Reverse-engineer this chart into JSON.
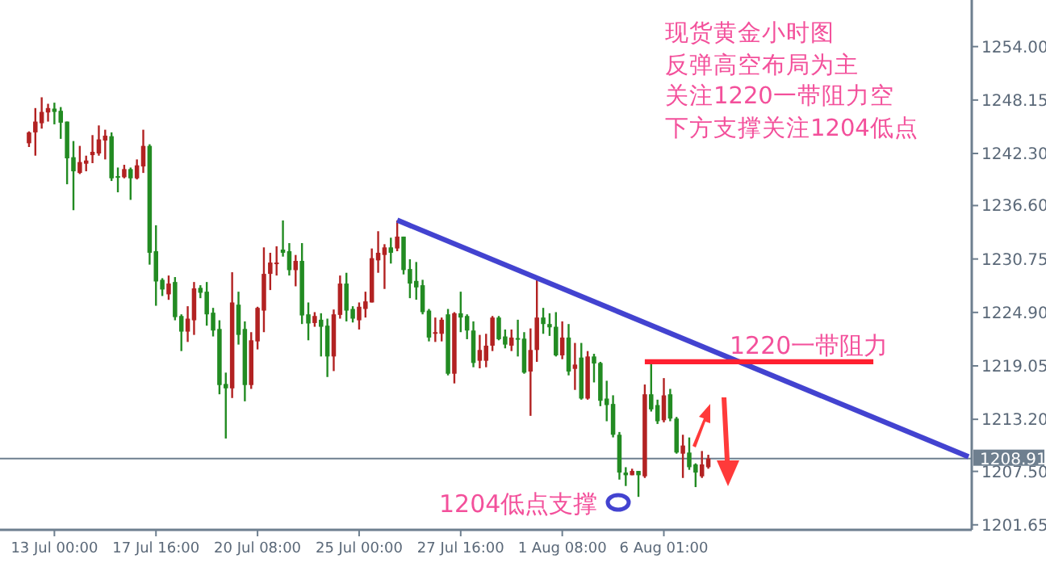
{
  "chart_data": {
    "type": "candlestick",
    "title": "现货黄金小时图",
    "subtitle": "反弹高空布局为主",
    "annotations": [
      "关注1220一带阻力空",
      "下方支撑关注1204低点",
      "1220一带阻力",
      "1204低点支撑"
    ],
    "ylim": [
      1201.1,
      1259.1
    ],
    "yticks": [
      {
        "value": 1254,
        "label": "1254.00"
      },
      {
        "value": 1248.15,
        "label": "1248.15"
      },
      {
        "value": 1242.3,
        "label": "1242.30"
      },
      {
        "value": 1236.6,
        "label": "1236.60"
      },
      {
        "value": 1230.75,
        "label": "1230.75"
      },
      {
        "value": 1224.9,
        "label": "1224.90"
      },
      {
        "value": 1219.05,
        "label": "1219.05"
      },
      {
        "value": 1213.2,
        "label": "1213.20"
      },
      {
        "value": 1207.5,
        "label": "1207.50"
      },
      {
        "value": 1201.65,
        "label": "1201.65"
      }
    ],
    "categories": [
      null,
      null,
      null,
      null,
      "13 Jul 00:00",
      null,
      null,
      null,
      null,
      null,
      null,
      null,
      null,
      null,
      null,
      null,
      null,
      null,
      null,
      null,
      "17 Jul 16:00",
      null,
      null,
      null,
      null,
      null,
      null,
      null,
      null,
      null,
      null,
      null,
      null,
      null,
      null,
      null,
      "20 Jul 08:00",
      null,
      null,
      null,
      null,
      null,
      null,
      null,
      null,
      null,
      null,
      null,
      null,
      null,
      null,
      null,
      "25 Jul 00:00",
      null,
      null,
      null,
      null,
      null,
      null,
      null,
      null,
      null,
      null,
      null,
      null,
      null,
      null,
      null,
      "27 Jul 16:00",
      null,
      null,
      null,
      null,
      null,
      null,
      null,
      null,
      null,
      null,
      null,
      null,
      null,
      null,
      null,
      "1 Aug 08:00",
      null,
      null,
      null,
      null,
      null,
      null,
      null,
      null,
      null,
      null,
      null,
      null,
      null,
      null,
      null,
      "6 Aug 01:00",
      null,
      null,
      null,
      null,
      null,
      null,
      null,
      null,
      null,
      null,
      null,
      null,
      null,
      null,
      null,
      null,
      null,
      null,
      null,
      null,
      null,
      null,
      null,
      null,
      null,
      null,
      null,
      null,
      null,
      null,
      null,
      null,
      null,
      null,
      null,
      null,
      null,
      null,
      null,
      null,
      null,
      null,
      null,
      null,
      null,
      null,
      null,
      null
    ],
    "ohlc": [
      [
        1243.42,
        1244.72,
        1243.01,
        1244.61
      ],
      [
        1244.61,
        1247.27,
        1242.06,
        1245.79
      ],
      [
        1245.61,
        1248.45,
        1245.02,
        1246.85
      ],
      [
        1246.79,
        1247.74,
        1245.79,
        1247.27
      ],
      [
        1247.21,
        1247.86,
        1245.49,
        1246.85
      ],
      [
        1246.97,
        1247.38,
        1243.9,
        1245.67
      ],
      [
        1245.79,
        1245.79,
        1238.93,
        1241.77
      ],
      [
        1241.89,
        1243.66,
        1236.09,
        1240.35
      ],
      [
        1240.17,
        1243.13,
        1240.05,
        1241.36
      ],
      [
        1241.18,
        1242.06,
        1240.35,
        1241.53
      ],
      [
        1242.12,
        1244.31,
        1241.24,
        1242.48
      ],
      [
        1242.3,
        1245.37,
        1242.06,
        1243.84
      ],
      [
        1243.72,
        1244.9,
        1241.65,
        1244.25
      ],
      [
        1244.19,
        1244.61,
        1239.29,
        1239.58
      ],
      [
        1239.82,
        1240.76,
        1238.05,
        1239.64
      ],
      [
        1239.7,
        1241.06,
        1239.58,
        1240.59
      ],
      [
        1240.59,
        1240.76,
        1237.22,
        1239.58
      ],
      [
        1239.58,
        1241.65,
        1239.46,
        1241.0
      ],
      [
        1240.88,
        1244.9,
        1240.17,
        1243.13
      ],
      [
        1243.13,
        1243.31,
        1230.13,
        1231.43
      ],
      [
        1231.6,
        1234.44,
        1225.63,
        1228.29
      ],
      [
        1228.47,
        1228.65,
        1226.7,
        1227.41
      ],
      [
        1226.88,
        1228.94,
        1226.28,
        1228.06
      ],
      [
        1228.23,
        1228.77,
        1224.04,
        1224.39
      ],
      [
        1224.51,
        1224.69,
        1220.67,
        1222.8
      ],
      [
        1222.8,
        1225.58,
        1221.67,
        1224.22
      ],
      [
        1224.04,
        1228.23,
        1222.44,
        1227.53
      ],
      [
        1227.59,
        1227.88,
        1226.46,
        1227.05
      ],
      [
        1227.17,
        1228.23,
        1223.45,
        1224.69
      ],
      [
        1224.87,
        1225.4,
        1222.27,
        1222.92
      ],
      [
        1223.09,
        1224.04,
        1215.94,
        1216.95
      ],
      [
        1217.07,
        1218.31,
        1211.1,
        1216.59
      ],
      [
        1216.59,
        1229.3,
        1215.53,
        1225.99
      ],
      [
        1225.75,
        1227.17,
        1221.38,
        1222.44
      ],
      [
        1223.09,
        1223.92,
        1215.17,
        1216.95
      ],
      [
        1216.95,
        1222.74,
        1216.53,
        1221.85
      ],
      [
        1221.73,
        1225.52,
        1220.85,
        1225.4
      ],
      [
        1225.1,
        1232.02,
        1222.74,
        1229.12
      ],
      [
        1229.12,
        1231.43,
        1227.35,
        1230.36
      ],
      [
        1230.25,
        1232.14,
        1228.94,
        1230.36
      ],
      [
        1231.78,
        1234.97,
        1231.01,
        1231.43
      ],
      [
        1231.6,
        1232.49,
        1228.94,
        1229.53
      ],
      [
        1229.53,
        1231.19,
        1227.76,
        1230.54
      ],
      [
        1230.54,
        1232.49,
        1223.63,
        1224.57
      ],
      [
        1224.69,
        1225.99,
        1221.85,
        1223.69
      ],
      [
        1223.74,
        1224.93,
        1223.33,
        1224.51
      ],
      [
        1224.1,
        1224.81,
        1220.08,
        1223.33
      ],
      [
        1223.45,
        1224.22,
        1217.83,
        1220.08
      ],
      [
        1220.08,
        1225.22,
        1218.48,
        1224.69
      ],
      [
        1224.63,
        1228.94,
        1224.22,
        1228.06
      ],
      [
        1228.06,
        1229.24,
        1223.92,
        1225.1
      ],
      [
        1225.28,
        1225.58,
        1223.8,
        1224.22
      ],
      [
        1224.04,
        1225.99,
        1223.03,
        1225.52
      ],
      [
        1225.28,
        1227.17,
        1224.34,
        1226.11
      ],
      [
        1225.99,
        1231.9,
        1225.99,
        1230.84
      ],
      [
        1230.6,
        1233.79,
        1229.24,
        1231.43
      ],
      [
        1231.19,
        1232.37,
        1227.47,
        1232.02
      ],
      [
        1232.02,
        1233.08,
        1230.25,
        1231.43
      ],
      [
        1231.9,
        1234.97,
        1231.6,
        1233.2
      ],
      [
        1233.2,
        1233.2,
        1229.06,
        1229.54
      ],
      [
        1229.65,
        1230.72,
        1226.46,
        1228.06
      ],
      [
        1228.35,
        1230.42,
        1226.29,
        1227.64
      ],
      [
        1227.88,
        1228.47,
        1224.69,
        1224.93
      ],
      [
        1225.1,
        1225.28,
        1221.73,
        1222.15
      ],
      [
        1222.56,
        1224.34,
        1221.67,
        1222.74
      ],
      [
        1222.56,
        1224.34,
        1221.73,
        1224.1
      ],
      [
        1224.69,
        1225.28,
        1218.01,
        1218.19
      ],
      [
        1218.19,
        1224.93,
        1217.13,
        1224.81
      ],
      [
        1224.81,
        1227.17,
        1222.74,
        1224.34
      ],
      [
        1224.51,
        1224.69,
        1221.97,
        1222.92
      ],
      [
        1222.92,
        1223.92,
        1218.9,
        1219.37
      ],
      [
        1219.61,
        1222.44,
        1218.78,
        1220.79
      ],
      [
        1219.61,
        1222.56,
        1218.9,
        1221.26
      ],
      [
        1221.26,
        1224.51,
        1220.67,
        1224.34
      ],
      [
        1224.34,
        1224.51,
        1221.85,
        1221.97
      ],
      [
        1222.27,
        1223.03,
        1220.97,
        1221.38
      ],
      [
        1221.26,
        1223.03,
        1220.67,
        1222.15
      ],
      [
        1222.09,
        1224.1,
        1220.08,
        1221.97
      ],
      [
        1222.03,
        1222.74,
        1218.19,
        1218.31
      ],
      [
        1218.43,
        1223.15,
        1213.58,
        1220.79
      ],
      [
        1220.79,
        1228.47,
        1219.49,
        1224.34
      ],
      [
        1224.34,
        1225.4,
        1222.56,
        1223.63
      ],
      [
        1223.63,
        1224.81,
        1222.33,
        1223.27
      ],
      [
        1223.33,
        1224.93,
        1220.08,
        1220.2
      ],
      [
        1220.2,
        1223.92,
        1219.78,
        1222.15
      ],
      [
        1222.15,
        1223.63,
        1218.01,
        1218.43
      ],
      [
        1218.72,
        1221.56,
        1216.42,
        1219.19
      ],
      [
        1219.96,
        1221.56,
        1215.35,
        1215.47
      ],
      [
        1215.47,
        1220.67,
        1215.35,
        1220.08
      ],
      [
        1220.08,
        1220.37,
        1217.24,
        1219.31
      ],
      [
        1219.37,
        1219.49,
        1214.64,
        1215.23
      ],
      [
        1215.47,
        1217.42,
        1212.99,
        1214.76
      ],
      [
        1214.88,
        1215.83,
        1211.22,
        1211.51
      ],
      [
        1211.51,
        1211.81,
        1206.6,
        1207.37
      ],
      [
        1207.37,
        1207.96,
        1205.9,
        1207.08
      ],
      [
        1207.08,
        1207.79,
        1207.08,
        1207.55
      ],
      [
        1207.55,
        1207.55,
        1204.71,
        1207.08
      ],
      [
        1206.96,
        1217.01,
        1206.78,
        1215.94
      ],
      [
        1215.94,
        1219.49,
        1214.05,
        1214.29
      ],
      [
        1214.76,
        1215.35,
        1212.69,
        1212.99
      ],
      [
        1213.1,
        1217.71,
        1212.87,
        1215.82
      ],
      [
        1215.94,
        1216.53,
        1212.99,
        1213.28
      ],
      [
        1213.28,
        1213.46,
        1209.44,
        1209.56
      ],
      [
        1209.44,
        1211.51,
        1206.78,
        1210.33
      ],
      [
        1209.56,
        1211.21,
        1207.67,
        1207.96
      ],
      [
        1208.26,
        1208.38,
        1205.78,
        1207.37
      ],
      [
        1206.96,
        1209.73,
        1206.78,
        1208.26
      ],
      [
        1207.96,
        1209.32,
        1207.79,
        1208.91
      ],
      null,
      null,
      null,
      null,
      null,
      null,
      null,
      null,
      null,
      null,
      null,
      null,
      null,
      null,
      null,
      null,
      null,
      null,
      null,
      null,
      null,
      null,
      null,
      null,
      null,
      null,
      null,
      null,
      null,
      null,
      null,
      null,
      null,
      null,
      null,
      null,
      null,
      null,
      null,
      null,
      null
    ],
    "colors": [
      "#b22222",
      "#b22222",
      "#b22222",
      "#b22222",
      "#228b22",
      "#228b22",
      "#228b22",
      "#228b22",
      "#b22222",
      "#b22222",
      "#b22222",
      "#b22222",
      "#b22222",
      "#228b22",
      "#228b22",
      "#b22222",
      "#228b22",
      "#b22222",
      "#b22222",
      "#228b22",
      "#228b22",
      "#228b22",
      "#b22222",
      "#228b22",
      "#228b22",
      "#b22222",
      "#b22222",
      "#228b22",
      "#228b22",
      "#228b22",
      "#228b22",
      "#228b22",
      "#b22222",
      "#228b22",
      "#228b22",
      "#b22222",
      "#b22222",
      "#b22222",
      "#b22222",
      "#b22222",
      "#228b22",
      "#228b22",
      "#b22222",
      "#228b22",
      "#228b22",
      "#b22222",
      "#228b22",
      "#228b22",
      "#b22222",
      "#b22222",
      "#228b22",
      "#228b22",
      "#b22222",
      "#b22222",
      "#b22222",
      "#b22222",
      "#b22222",
      "#228b22",
      "#b22222",
      "#228b22",
      "#228b22",
      "#228b22",
      "#228b22",
      "#228b22",
      "#b22222",
      "#b22222",
      "#228b22",
      "#b22222",
      "#228b22",
      "#228b22",
      "#228b22",
      "#b22222",
      "#b22222",
      "#b22222",
      "#228b22",
      "#228b22",
      "#b22222",
      "#228b22",
      "#228b22",
      "#b22222",
      "#b22222",
      "#228b22",
      "#228b22",
      "#228b22",
      "#b22222",
      "#228b22",
      "#b22222",
      "#228b22",
      "#b22222",
      "#228b22",
      "#228b22",
      "#228b22",
      "#228b22",
      "#228b22",
      "#228b22",
      "#b22222",
      "#228b22",
      "#b22222",
      "#228b22",
      "#228b22",
      "#b22222",
      "#228b22",
      "#228b22",
      "#b22222",
      "#228b22",
      "#228b22",
      "#b22222",
      "#b22222",
      null,
      null,
      null,
      null,
      null,
      null,
      null,
      null,
      null,
      null,
      null,
      null,
      null,
      null,
      null,
      null,
      null,
      null,
      null,
      null,
      null,
      null,
      null,
      null,
      null,
      null,
      null,
      null,
      null,
      null,
      null,
      null,
      null,
      null,
      null,
      null,
      null,
      null,
      null,
      null,
      null
    ],
    "series": [
      {
        "type": "line",
        "color": "#4343d0",
        "values": [
          null,
          null,
          null,
          null,
          null,
          null,
          null,
          null,
          null,
          null,
          null,
          null,
          null,
          null,
          null,
          null,
          null,
          null,
          null,
          null,
          null,
          null,
          null,
          null,
          null,
          null,
          null,
          null,
          null,
          null,
          null,
          null,
          null,
          null,
          null,
          null,
          null,
          null,
          null,
          null,
          null,
          null,
          null,
          null,
          null,
          null,
          null,
          null,
          null,
          null,
          null,
          null,
          null,
          null,
          null,
          null,
          null,
          null,
          1235.0,
          null,
          null,
          null,
          null,
          null,
          null,
          null,
          null,
          null,
          null,
          null,
          null,
          null,
          null,
          null,
          null,
          null,
          null,
          null,
          null,
          null,
          null,
          null,
          null,
          null,
          null,
          null,
          null,
          null,
          null,
          null,
          null,
          null,
          null,
          null,
          null,
          null,
          null,
          null,
          null,
          null,
          null,
          null,
          null,
          null,
          null,
          null,
          null,
          null,
          null,
          null,
          null,
          null,
          null,
          null,
          null,
          null,
          null,
          null,
          null,
          null,
          null,
          null,
          null,
          null,
          null,
          null,
          null,
          null,
          null,
          null,
          null,
          null,
          null,
          null,
          null,
          null,
          null,
          null,
          null,
          null,
          null,
          null,
          null,
          null,
          null,
          null,
          null,
          null,
          1209.1
        ]
      },
      {
        "type": "line",
        "color": "#ff2030",
        "values": [
          null,
          null,
          null,
          null,
          null,
          null,
          null,
          null,
          null,
          null,
          null,
          null,
          null,
          null,
          null,
          null,
          null,
          null,
          null,
          null,
          null,
          null,
          null,
          null,
          null,
          null,
          null,
          null,
          null,
          null,
          null,
          null,
          null,
          null,
          null,
          null,
          null,
          null,
          null,
          null,
          null,
          null,
          null,
          null,
          null,
          null,
          null,
          null,
          null,
          null,
          null,
          null,
          null,
          null,
          null,
          null,
          null,
          null,
          null,
          null,
          null,
          null,
          null,
          null,
          null,
          null,
          null,
          null,
          null,
          null,
          null,
          null,
          null,
          null,
          null,
          null,
          null,
          null,
          null,
          null,
          null,
          null,
          null,
          null,
          null,
          null,
          null,
          null,
          null,
          null,
          null,
          null,
          null,
          null,
          null,
          null,
          null,
          1219.5,
          null,
          null,
          null,
          null,
          null,
          null,
          null,
          null,
          null,
          null,
          null,
          null,
          null,
          null,
          null,
          null,
          null,
          null,
          null,
          null,
          null,
          null,
          null,
          null,
          null,
          null,
          null,
          null,
          null,
          null,
          null,
          null,
          null,
          null,
          null,
          1219.5,
          null,
          null,
          null,
          null,
          null,
          null,
          null,
          null,
          null,
          null,
          null,
          null,
          null,
          null,
          null
        ]
      }
    ],
    "ref_lines": [
      {
        "axis": "y",
        "value": 1208.91,
        "label": "1208.91",
        "color": "#6e7f8f"
      }
    ]
  }
}
